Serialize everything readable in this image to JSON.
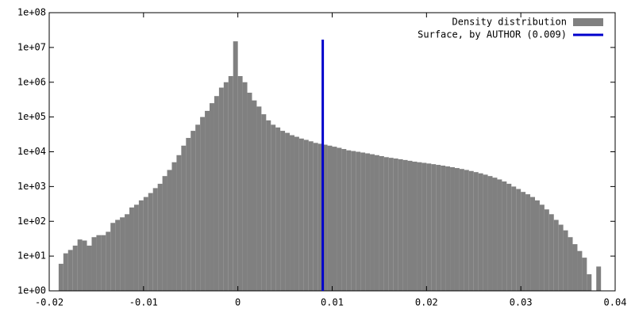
{
  "chart_data": {
    "type": "histogram",
    "name": "Density distribution",
    "color": "#808080",
    "bins": [
      -0.019,
      -0.0185,
      -0.018,
      -0.0175,
      -0.017,
      -0.0165,
      -0.016,
      -0.0155,
      -0.015,
      -0.0145,
      -0.014,
      -0.0135,
      -0.013,
      -0.0125,
      -0.012,
      -0.0115,
      -0.011,
      -0.0105,
      -0.01,
      -0.0095,
      -0.009,
      -0.0085,
      -0.008,
      -0.0075,
      -0.007,
      -0.0065,
      -0.006,
      -0.0055,
      -0.005,
      -0.0045,
      -0.004,
      -0.0035,
      -0.003,
      -0.0025,
      -0.002,
      -0.0015,
      -0.001,
      -0.0005,
      0,
      0.0005,
      0.001,
      0.0015,
      0.002,
      0.0025,
      0.003,
      0.0035,
      0.004,
      0.0045,
      0.005,
      0.0055,
      0.006,
      0.0065,
      0.007,
      0.0075,
      0.008,
      0.0085,
      0.009,
      0.0095,
      0.01,
      0.0105,
      0.011,
      0.0115,
      0.012,
      0.0125,
      0.013,
      0.0135,
      0.014,
      0.0145,
      0.015,
      0.0155,
      0.016,
      0.0165,
      0.017,
      0.0175,
      0.018,
      0.0185,
      0.019,
      0.0195,
      0.02,
      0.0205,
      0.021,
      0.0215,
      0.022,
      0.0225,
      0.023,
      0.0235,
      0.024,
      0.0245,
      0.025,
      0.0255,
      0.026,
      0.0265,
      0.027,
      0.0275,
      0.028,
      0.0285,
      0.029,
      0.0295,
      0.03,
      0.0305,
      0.031,
      0.0315,
      0.032,
      0.0325,
      0.033,
      0.0335,
      0.034,
      0.0345,
      0.035,
      0.0355,
      0.036,
      0.0365,
      0.037,
      0.0375,
      0.038,
      0.0385
    ],
    "values": [
      6,
      12,
      15,
      20,
      30,
      28,
      20,
      35,
      40,
      40,
      50,
      90,
      110,
      130,
      160,
      250,
      300,
      400,
      500,
      650,
      900,
      1200,
      2000,
      3000,
      5000,
      8000,
      15000,
      25000,
      40000,
      60000,
      100000,
      150000,
      250000,
      400000,
      700000,
      1000000,
      1500000,
      15000000,
      1500000,
      1000000,
      500000,
      300000,
      200000,
      120000,
      80000,
      60000,
      50000,
      40000,
      35000,
      30000,
      27000,
      24000,
      22000,
      20000,
      18000,
      17000,
      16000,
      15000,
      14000,
      13000,
      12000,
      11000,
      10500,
      10000,
      9500,
      9000,
      8500,
      8000,
      7500,
      7000,
      6700,
      6400,
      6100,
      5800,
      5500,
      5200,
      5000,
      4800,
      4600,
      4400,
      4200,
      4000,
      3800,
      3600,
      3400,
      3200,
      3000,
      2800,
      2600,
      2400,
      2200,
      2000,
      1800,
      1600,
      1400,
      1200,
      1000,
      850,
      700,
      600,
      500,
      400,
      300,
      220,
      160,
      110,
      80,
      55,
      35,
      22,
      14,
      9,
      3,
      0,
      5
    ],
    "vline": {
      "name": "Surface, by AUTHOR (0.009)",
      "x": 0.009,
      "color": "#0000cc"
    },
    "xlim": [
      -0.02,
      0.04
    ],
    "xticks": [
      -0.02,
      -0.01,
      0,
      0.01,
      0.02,
      0.03,
      0.04
    ],
    "ylim": [
      1,
      100000000
    ],
    "log_y": true,
    "yticks": [
      {
        "value": 1,
        "label": "1e+00"
      },
      {
        "value": 10,
        "label": "1e+01"
      },
      {
        "value": 100,
        "label": "1e+02"
      },
      {
        "value": 1000,
        "label": "1e+03"
      },
      {
        "value": 10000,
        "label": "1e+04"
      },
      {
        "value": 100000,
        "label": "1e+05"
      },
      {
        "value": 1000000,
        "label": "1e+06"
      },
      {
        "value": 10000000,
        "label": "1e+07"
      },
      {
        "value": 100000000,
        "label": "1e+08"
      }
    ]
  }
}
